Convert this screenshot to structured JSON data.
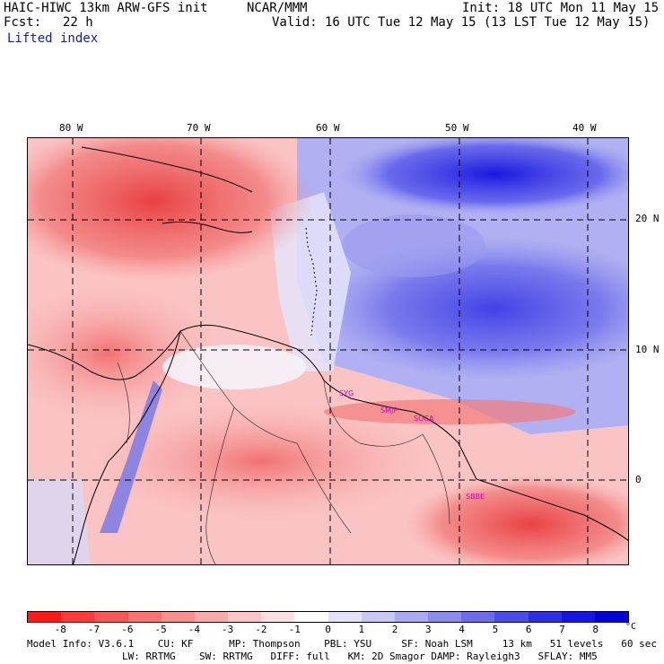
{
  "header": {
    "title": "HAIC-HIWC 13km ARW-GFS init",
    "org": "NCAR/MMM",
    "init": "Init: 18 UTC Mon 11 May 15",
    "fcst_label": "Fcst:",
    "fcst_value": "22 h",
    "valid": "Valid: 16 UTC Tue 12 May 15 (13 LST Tue 12 May 15)",
    "variable": "Lifted index"
  },
  "map": {
    "lon_labels": [
      "80 W",
      "70 W",
      "60 W",
      "50 W",
      "40 W"
    ],
    "lat_labels": [
      "20 N",
      "10 N",
      "0"
    ],
    "station_labels": [
      "SYG",
      "SMJP",
      "SOCA",
      "SBBE"
    ]
  },
  "colorbar": {
    "labels": [
      "-8",
      "-7",
      "-6",
      "-5",
      "-4",
      "-3",
      "-2",
      "-1",
      "0",
      "1",
      "2",
      "3",
      "4",
      "5",
      "6",
      "7",
      "8"
    ],
    "unit": "°C",
    "colors": [
      "#ff1a1a",
      "#ff3a3a",
      "#f95858",
      "#f87474",
      "#f99090",
      "#fbaaaa",
      "#fdc6c6",
      "#fee0e0",
      "#ffffff",
      "#e2e2fb",
      "#c8c8f6",
      "#aaaaf2",
      "#8c8cef",
      "#6c6cec",
      "#4c4ce9",
      "#2e2ee8",
      "#1515e6",
      "#0000d8"
    ]
  },
  "model_info": {
    "line1": "Model Info: V3.6.1    CU: KF      MP: Thompson    PBL: YSU     SF: Noah LSM     13 km   51 levels   60 sec",
    "line2": "                LW: RRTMG    SW: RRTMG   DIFF: full   KM: 2D Smagor DAMP: Rayleigh3   SFLAY: MM5"
  }
}
